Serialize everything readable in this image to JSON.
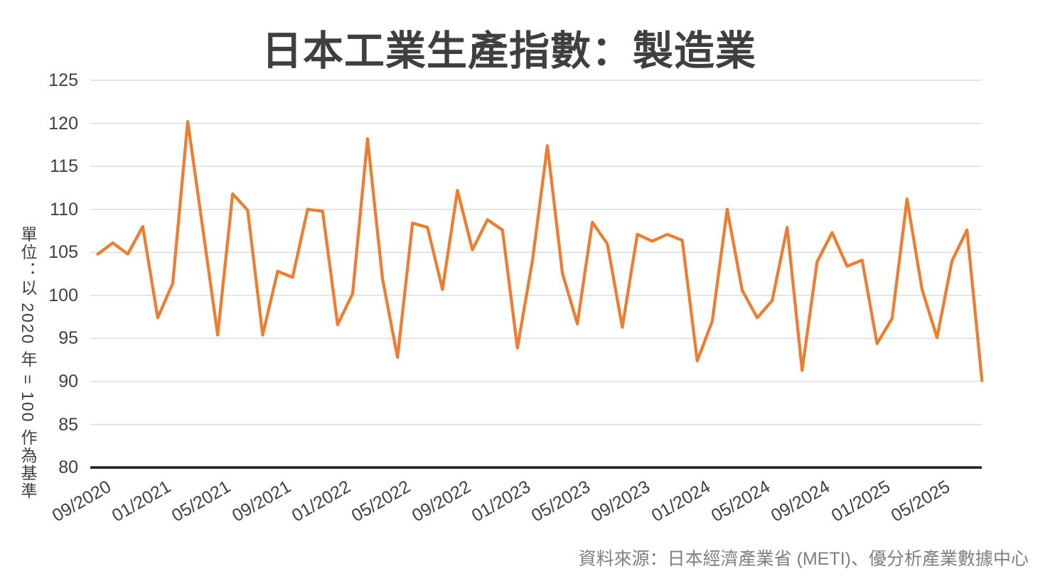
{
  "title": "日本工業生產指數：製造業",
  "source_note": "資料來源：日本經濟產業省 (METI)、優分析產業數據中心",
  "colors": {
    "line": "#ED7D31",
    "grid": "#D9D9D9",
    "axis": "#262626",
    "title_text": "#3F3F3F",
    "tick_text": "#404040",
    "source_text": "#7F7F7F",
    "background": "#FFFFFF"
  },
  "chart_data": {
    "type": "line",
    "title": "日本工業生產指數：製造業",
    "xlabel": "",
    "ylabel": "單位：以 2020 年 = 100 作為基準",
    "ylim": [
      80,
      125
    ],
    "ytick_step": 5,
    "yticks": [
      80,
      85,
      90,
      95,
      100,
      105,
      110,
      115,
      120,
      125
    ],
    "grid": "horizontal",
    "legend": "none",
    "xtick_every": 4,
    "xtick_labels": [
      "09/2020",
      "01/2021",
      "05/2021",
      "09/2021",
      "01/2022",
      "05/2022",
      "09/2022",
      "01/2023",
      "05/2023",
      "09/2023",
      "01/2024",
      "05/2024",
      "09/2024",
      "01/2025",
      "05/2025"
    ],
    "x": [
      "09/2020",
      "10/2020",
      "11/2020",
      "12/2020",
      "01/2021",
      "02/2021",
      "03/2021",
      "04/2021",
      "05/2021",
      "06/2021",
      "07/2021",
      "08/2021",
      "09/2021",
      "10/2021",
      "11/2021",
      "12/2021",
      "01/2022",
      "02/2022",
      "03/2022",
      "04/2022",
      "05/2022",
      "06/2022",
      "07/2022",
      "08/2022",
      "09/2022",
      "10/2022",
      "11/2022",
      "12/2022",
      "01/2023",
      "02/2023",
      "03/2023",
      "04/2023",
      "05/2023",
      "06/2023",
      "07/2023",
      "08/2023",
      "09/2023",
      "10/2023",
      "11/2023",
      "12/2023",
      "01/2024",
      "02/2024",
      "03/2024",
      "04/2024",
      "05/2024",
      "06/2024",
      "07/2024",
      "08/2024",
      "09/2024",
      "10/2024",
      "11/2024",
      "12/2024",
      "01/2025",
      "02/2025",
      "03/2025",
      "04/2025",
      "05/2025",
      "06/2025",
      "07/2025",
      "08/2025"
    ],
    "values": [
      104.8,
      106.1,
      104.8,
      108.0,
      97.4,
      101.4,
      120.2,
      107.8,
      95.4,
      111.8,
      109.9,
      95.4,
      102.8,
      102.1,
      110.0,
      109.8,
      96.6,
      100.2,
      118.2,
      101.9,
      92.8,
      108.4,
      107.9,
      100.7,
      112.2,
      105.3,
      108.8,
      107.6,
      93.9,
      104.0,
      117.4,
      102.6,
      96.7,
      108.5,
      106.0,
      96.3,
      107.1,
      106.3,
      107.1,
      106.4,
      92.4,
      97.0,
      110.0,
      100.6,
      97.4,
      99.4,
      107.9,
      91.3,
      103.9,
      107.3,
      103.4,
      104.1,
      94.4,
      97.3,
      111.2,
      100.7,
      95.1,
      104.0,
      107.6,
      90.1
    ]
  }
}
